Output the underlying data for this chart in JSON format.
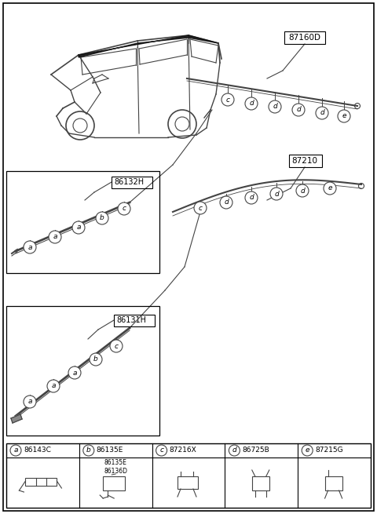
{
  "bg_color": "#ffffff",
  "line_color": "#444444",
  "text_color": "#000000",
  "assembly_labels": {
    "top_right": "87160D",
    "middle_right": "87210",
    "left_upper": "86132H",
    "left_lower": "86131H"
  },
  "legend_labels": [
    [
      "a",
      "86143C"
    ],
    [
      "b",
      "86135E\n86136D"
    ],
    [
      "c",
      "87216X"
    ],
    [
      "d",
      "86725B"
    ],
    [
      "e",
      "87215G"
    ]
  ]
}
